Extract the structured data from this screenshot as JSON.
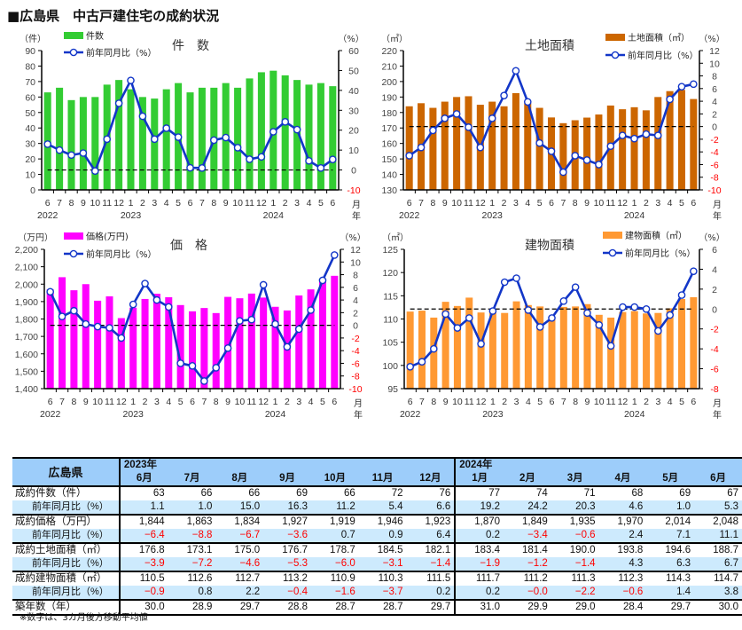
{
  "page_title": "■広島県　中古戸建住宅の成約状況",
  "chart_data": [
    {
      "type": "bar+line",
      "title": "件　数",
      "bar_label": "件数",
      "line_label": "前年同月比（%）",
      "left_unit": "（件）",
      "right_unit": "（%）",
      "month_labels": [
        "6",
        "7",
        "8",
        "9",
        "10",
        "11",
        "12",
        "1",
        "2",
        "3",
        "4",
        "5",
        "6",
        "7",
        "8",
        "9",
        "10",
        "11",
        "12",
        "1",
        "2",
        "3",
        "4",
        "5",
        "6"
      ],
      "year_labels": [
        "2022",
        "2023",
        "2024"
      ],
      "axis_end_labels": [
        "月",
        "年"
      ],
      "bar_values": [
        63,
        66,
        58,
        60,
        60,
        68,
        71,
        65,
        60,
        59,
        65,
        69,
        63,
        66,
        66,
        69,
        66,
        72,
        76,
        77,
        74,
        71,
        68,
        69,
        67
      ],
      "yoy_values": [
        13,
        10,
        7.5,
        8.5,
        -0.5,
        15.5,
        33.5,
        45,
        27,
        15.5,
        21,
        16.5,
        1.1,
        1.0,
        15.0,
        16.3,
        11.2,
        5.4,
        6.6,
        19.2,
        24.2,
        20.3,
        4.6,
        1.0,
        5.3
      ],
      "ylim": [
        0,
        90
      ],
      "ystep": 10,
      "y2lim": [
        -10,
        60
      ],
      "y2step": 10,
      "bar_color": "#33cc33",
      "line_color": "#1236c8"
    },
    {
      "type": "bar+line",
      "title": "土地面積",
      "bar_label": "土地面積（㎡）",
      "line_label": "前年同月比（%）",
      "left_unit": "（㎡）",
      "right_unit": "（%）",
      "month_labels": [
        "6",
        "7",
        "8",
        "9",
        "10",
        "11",
        "12",
        "1",
        "2",
        "3",
        "4",
        "5",
        "6",
        "7",
        "8",
        "9",
        "10",
        "11",
        "12",
        "1",
        "2",
        "3",
        "4",
        "5",
        "6"
      ],
      "year_labels": [
        "2022",
        "2023",
        "2024"
      ],
      "axis_end_labels": [
        "月",
        "年"
      ],
      "bar_values": [
        184,
        186,
        183,
        187,
        190,
        190.5,
        185,
        187,
        184,
        192.5,
        186,
        183,
        176.8,
        173.1,
        175.0,
        176.7,
        178.7,
        184.5,
        182.1,
        183.4,
        181.4,
        190.0,
        193.8,
        194.6,
        188.7
      ],
      "yoy_values": [
        -4.6,
        -3.3,
        -0.6,
        1.3,
        2.0,
        -0.1,
        -3.3,
        1.3,
        4.9,
        8.8,
        3.9,
        -2.6,
        -3.9,
        -7.2,
        -4.6,
        -5.3,
        -6.0,
        -3.1,
        -1.4,
        -1.9,
        -1.2,
        -1.4,
        4.3,
        6.3,
        6.7
      ],
      "ylim": [
        130,
        220
      ],
      "ystep": 10,
      "y2lim": [
        -10,
        12
      ],
      "y2step": 2,
      "bar_color": "#cc6600",
      "line_color": "#1236c8"
    },
    {
      "type": "bar+line",
      "title": "価　格",
      "bar_label": "価格(万円)",
      "line_label": "前年同月比（%）",
      "left_unit": "（万円）",
      "right_unit": "（%）",
      "month_labels": [
        "6",
        "7",
        "8",
        "9",
        "10",
        "11",
        "12",
        "1",
        "2",
        "3",
        "4",
        "5",
        "6",
        "7",
        "8",
        "9",
        "10",
        "11",
        "12",
        "1",
        "2",
        "3",
        "4",
        "5",
        "6"
      ],
      "year_labels": [
        "2022",
        "2023",
        "2024"
      ],
      "axis_end_labels": [
        "月",
        "年"
      ],
      "bar_values": [
        1970,
        2040,
        1965,
        2000,
        1905,
        1930,
        1805,
        1865,
        1915,
        1945,
        1925,
        1880,
        1844,
        1863,
        1834,
        1927,
        1919,
        1946,
        1923,
        1870,
        1849,
        1935,
        1970,
        2014,
        2048
      ],
      "yoy_values": [
        5.3,
        1.4,
        2.3,
        0.2,
        -0.2,
        -0.4,
        -2.0,
        3.3,
        6.6,
        4.0,
        2.9,
        -6.0,
        -6.4,
        -8.8,
        -6.7,
        -3.6,
        0.7,
        0.9,
        6.4,
        0.2,
        -3.4,
        -0.6,
        2.4,
        7.1,
        11.1
      ],
      "ylim": [
        1400,
        2200
      ],
      "ystep": 100,
      "y2lim": [
        -10,
        12
      ],
      "y2step": 2,
      "bar_color": "#ff00ff",
      "line_color": "#1236c8"
    },
    {
      "type": "bar+line",
      "title": "建物面積",
      "bar_label": "建物面積（㎡）",
      "line_label": "前年同月比（%）",
      "left_unit": "（㎡）",
      "right_unit": "（%）",
      "month_labels": [
        "6",
        "7",
        "8",
        "9",
        "10",
        "11",
        "12",
        "1",
        "2",
        "3",
        "4",
        "5",
        "6",
        "7",
        "8",
        "9",
        "10",
        "11",
        "12",
        "1",
        "2",
        "3",
        "4",
        "5",
        "6"
      ],
      "year_labels": [
        "2022",
        "2023",
        "2024"
      ],
      "axis_end_labels": [
        "月",
        "年"
      ],
      "bar_values": [
        111.6,
        111.8,
        110.3,
        113.7,
        112.8,
        114.6,
        111.4,
        111.4,
        111.3,
        113.8,
        113.0,
        112.7,
        110.5,
        112.6,
        112.7,
        113.2,
        110.9,
        110.3,
        111.5,
        111.7,
        111.2,
        111.3,
        112.3,
        114.3,
        114.7
      ],
      "yoy_values": [
        -5.8,
        -5.3,
        -4.0,
        -0.5,
        -1.9,
        -0.9,
        -3.5,
        -0.2,
        2.7,
        3.1,
        -0.1,
        -1.8,
        -0.9,
        0.8,
        2.2,
        -0.4,
        -1.6,
        -3.7,
        0.2,
        0.2,
        -0.0,
        -2.2,
        -0.6,
        1.4,
        3.8
      ],
      "ylim": [
        95,
        125
      ],
      "ystep": 5,
      "y2lim": [
        -8,
        6
      ],
      "y2step": 2,
      "bar_color": "#ff9933",
      "line_color": "#1236c8"
    }
  ],
  "table": {
    "corner": "広島県",
    "year_2023": "2023年",
    "year_2024": "2024年",
    "months": [
      "6月",
      "7月",
      "8月",
      "9月",
      "10月",
      "11月",
      "12月",
      "1月",
      "2月",
      "3月",
      "4月",
      "5月",
      "6月"
    ],
    "rows": [
      {
        "label": "成約件数（件）",
        "sub": false,
        "values": [
          "63",
          "66",
          "66",
          "69",
          "66",
          "72",
          "76",
          "77",
          "74",
          "71",
          "68",
          "69",
          "67"
        ]
      },
      {
        "label": "前年同月比（%）",
        "sub": true,
        "values": [
          "1.1",
          "1.0",
          "15.0",
          "16.3",
          "11.2",
          "5.4",
          "6.6",
          "19.2",
          "24.2",
          "20.3",
          "4.6",
          "1.0",
          "5.3"
        ]
      },
      {
        "label": "成約価格（万円）",
        "sub": false,
        "values": [
          "1,844",
          "1,863",
          "1,834",
          "1,927",
          "1,919",
          "1,946",
          "1,923",
          "1,870",
          "1,849",
          "1,935",
          "1,970",
          "2,014",
          "2,048"
        ]
      },
      {
        "label": "前年同月比（%）",
        "sub": true,
        "values": [
          "−6.4",
          "−8.8",
          "−6.7",
          "−3.6",
          "0.7",
          "0.9",
          "6.4",
          "0.2",
          "−3.4",
          "−0.6",
          "2.4",
          "7.1",
          "11.1"
        ]
      },
      {
        "label": "成約土地面積（㎡）",
        "sub": false,
        "values": [
          "176.8",
          "173.1",
          "175.0",
          "176.7",
          "178.7",
          "184.5",
          "182.1",
          "183.4",
          "181.4",
          "190.0",
          "193.8",
          "194.6",
          "188.7"
        ]
      },
      {
        "label": "前年同月比（%）",
        "sub": true,
        "values": [
          "−3.9",
          "−7.2",
          "−4.6",
          "−5.3",
          "−6.0",
          "−3.1",
          "−1.4",
          "−1.9",
          "−1.2",
          "−1.4",
          "4.3",
          "6.3",
          "6.7"
        ]
      },
      {
        "label": "成約建物面積（㎡）",
        "sub": false,
        "values": [
          "110.5",
          "112.6",
          "112.7",
          "113.2",
          "110.9",
          "110.3",
          "111.5",
          "111.7",
          "111.2",
          "111.3",
          "112.3",
          "114.3",
          "114.7"
        ]
      },
      {
        "label": "前年同月比（%）",
        "sub": true,
        "values": [
          "−0.9",
          "0.8",
          "2.2",
          "−0.4",
          "−1.6",
          "−3.7",
          "0.2",
          "0.2",
          "−0.0",
          "−2.2",
          "−0.6",
          "1.4",
          "3.8"
        ]
      },
      {
        "label": "築年数（年）",
        "sub": false,
        "values": [
          "30.0",
          "28.9",
          "29.7",
          "28.8",
          "28.7",
          "28.7",
          "29.7",
          "31.0",
          "29.9",
          "29.0",
          "28.4",
          "29.7",
          "30.0"
        ]
      }
    ],
    "note": "※数字は、3カ月後方移動平均値"
  }
}
